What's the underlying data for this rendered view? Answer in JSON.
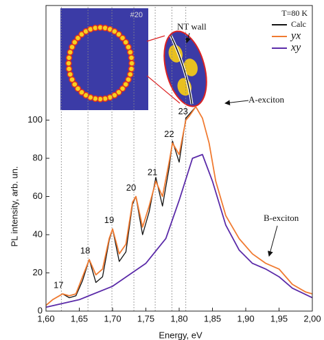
{
  "chart_data": {
    "type": "line",
    "x_label": "Energy, eV",
    "y_label": "PL intensity, arb. un.",
    "xlim": [
      1.6,
      2.0
    ],
    "xticks": [
      {
        "value": 1.6,
        "label": "1,60"
      },
      {
        "value": 1.65,
        "label": "1,65"
      },
      {
        "value": 1.7,
        "label": "1,70"
      },
      {
        "value": 1.75,
        "label": "1,75"
      },
      {
        "value": 1.8,
        "label": "1,80"
      },
      {
        "value": 1.85,
        "label": "1,85"
      },
      {
        "value": 1.9,
        "label": "1,90"
      },
      {
        "value": 1.95,
        "label": "1,95"
      },
      {
        "value": 2.0,
        "label": "2,00"
      }
    ],
    "ylim": [
      0,
      160
    ],
    "yticks": [
      0,
      20,
      40,
      60,
      80,
      100
    ],
    "legend": "upper right",
    "series": [
      {
        "name": "Calc",
        "color": "#111111",
        "x": [
          1.6,
          1.61,
          1.62,
          1.625,
          1.635,
          1.645,
          1.655,
          1.665,
          1.675,
          1.685,
          1.695,
          1.7,
          1.71,
          1.72,
          1.73,
          1.735,
          1.745,
          1.755,
          1.765,
          1.775,
          1.785,
          1.79,
          1.8,
          1.81,
          1.815,
          1.825
        ],
        "values": [
          3,
          6,
          8,
          9,
          7,
          8,
          16,
          27,
          15,
          18,
          37,
          43,
          26,
          31,
          56,
          60,
          40,
          52,
          70,
          55,
          75,
          89,
          78,
          101,
          103,
          107
        ]
      },
      {
        "name": "yx",
        "color": "#f07a30",
        "x": [
          1.6,
          1.61,
          1.62,
          1.625,
          1.635,
          1.645,
          1.655,
          1.665,
          1.675,
          1.685,
          1.695,
          1.7,
          1.71,
          1.72,
          1.73,
          1.735,
          1.745,
          1.755,
          1.765,
          1.775,
          1.785,
          1.79,
          1.8,
          1.81,
          1.815,
          1.825,
          1.835,
          1.845,
          1.855,
          1.87,
          1.89,
          1.91,
          1.93,
          1.95,
          1.97,
          1.99,
          2.0
        ],
        "values": [
          3,
          6,
          8,
          9,
          8,
          9,
          18,
          27,
          19,
          22,
          38,
          43,
          30,
          35,
          57,
          60,
          44,
          55,
          68,
          60,
          78,
          88,
          82,
          100,
          102,
          107,
          101,
          88,
          68,
          50,
          38,
          30,
          25,
          22,
          14,
          10,
          9
        ]
      },
      {
        "name": "xy",
        "color": "#5a2aa8",
        "x": [
          1.6,
          1.65,
          1.7,
          1.75,
          1.78,
          1.8,
          1.82,
          1.835,
          1.85,
          1.87,
          1.89,
          1.91,
          1.93,
          1.95,
          1.97,
          2.0
        ],
        "values": [
          2,
          6,
          13,
          25,
          38,
          58,
          80,
          82,
          68,
          45,
          32,
          25,
          22,
          18,
          12,
          7
        ]
      }
    ],
    "peaks": [
      {
        "label": "17",
        "x": 1.623,
        "y": 9
      },
      {
        "label": "18",
        "x": 1.663,
        "y": 27
      },
      {
        "label": "19",
        "x": 1.699,
        "y": 43
      },
      {
        "label": "20",
        "x": 1.732,
        "y": 60
      },
      {
        "label": "21",
        "x": 1.764,
        "y": 68
      },
      {
        "label": "22",
        "x": 1.789,
        "y": 88
      },
      {
        "label": "23",
        "x": 1.81,
        "y": 100
      }
    ],
    "annotations": {
      "temperature": "T=80 K",
      "wall": "NT wall",
      "a_exciton": "A-exciton",
      "b_exciton": "B-exciton",
      "index": "#20"
    }
  }
}
